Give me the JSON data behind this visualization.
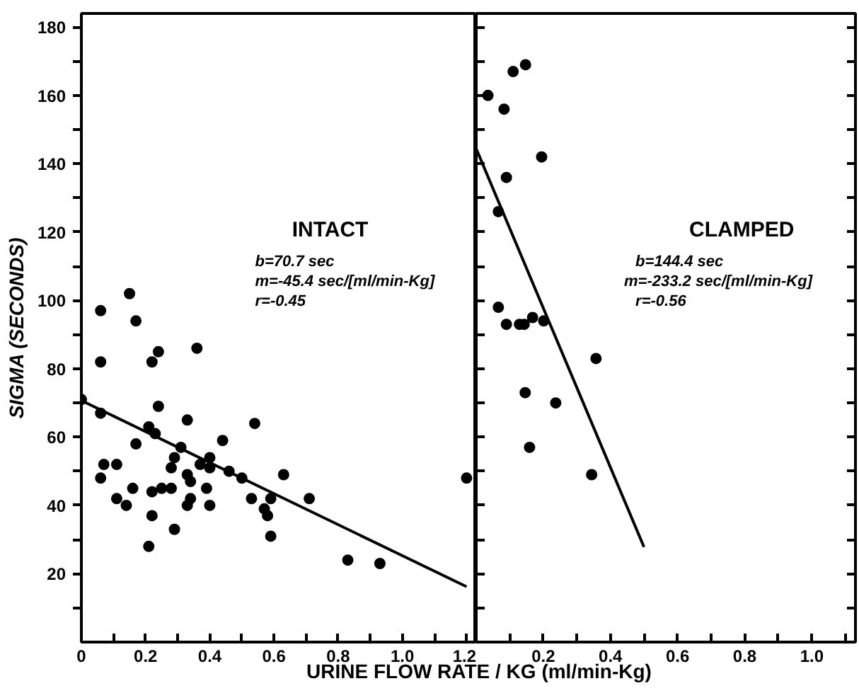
{
  "chart_data": [
    {
      "type": "scatter",
      "ylabel": "SIGMA (SECONDS)",
      "xlabel": "URINE FLOW RATE / KG (ml/min-Kg)",
      "annotations": [
        "INTACT",
        "b=70.7 sec",
        "m=-45.4 sec/[ml/min-Kg]",
        "r=-0.45"
      ],
      "xlim": [
        0,
        1.23
      ],
      "ylim": [
        0,
        184
      ],
      "grid": false,
      "xticks": [
        0,
        {
          "value": 0.1,
          "label": null
        },
        0.2,
        {
          "value": 0.3,
          "label": null
        },
        0.4,
        {
          "value": 0.5,
          "label": null
        },
        0.6,
        {
          "value": 0.7,
          "label": null
        },
        0.8,
        {
          "value": 0.9,
          "label": null
        },
        {
          "value": 1.0,
          "label": "1.0"
        },
        {
          "value": 1.1,
          "label": null
        },
        1.2
      ],
      "yticks": [
        {
          "value": 10,
          "label": null
        },
        20,
        {
          "value": 30,
          "label": null
        },
        40,
        {
          "value": 50,
          "label": null
        },
        60,
        {
          "value": 70,
          "label": null
        },
        80,
        {
          "value": 90,
          "label": null
        },
        100,
        {
          "value": 110,
          "label": null
        },
        120,
        {
          "value": 130,
          "label": null
        },
        140,
        {
          "value": 150,
          "label": null
        },
        160,
        {
          "value": 170,
          "label": null
        },
        180
      ],
      "series": [
        {
          "marker": "circle",
          "color": "#000000",
          "x": [
            0.06,
            0.15,
            0.17,
            0.24,
            0.36,
            0.06,
            0.22,
            0.0,
            0.06,
            0.21,
            0.23,
            0.24,
            0.33,
            0.17,
            0.31,
            0.54,
            0.44,
            0.29,
            0.07,
            0.11,
            0.06,
            0.28,
            0.33,
            0.34,
            0.37,
            0.4,
            0.4,
            0.46,
            0.5,
            0.63,
            0.16,
            0.22,
            0.25,
            0.28,
            0.11,
            0.14,
            0.34,
            0.33,
            0.39,
            0.4,
            0.53,
            0.57,
            0.59,
            0.58,
            0.59,
            0.71,
            0.22,
            0.29,
            0.21,
            0.83,
            0.93,
            1.2
          ],
          "values": [
            97,
            102,
            94,
            85,
            86,
            82,
            82,
            71,
            67,
            63,
            61,
            69,
            65,
            58,
            57,
            64,
            59,
            54,
            52,
            52,
            48,
            51,
            49,
            47,
            52,
            54,
            51,
            50,
            48,
            49,
            45,
            44,
            45,
            45,
            42,
            40,
            42,
            40,
            45,
            40,
            42,
            39,
            42,
            37,
            31,
            42,
            37,
            33,
            28,
            24,
            23,
            48
          ]
        },
        {
          "type": "line",
          "color": "#000000",
          "x": [
            0,
            1.2
          ],
          "values": [
            70.7,
            16.2
          ]
        }
      ]
    },
    {
      "type": "scatter",
      "tick_labels": "x",
      "annotations": [
        "CLAMPED",
        "b=144.4 sec",
        "m=-233.2 sec/[ml/min-Kg]",
        "r=-0.56"
      ],
      "xlim": [
        0,
        1.13
      ],
      "ylim": [
        0,
        184
      ],
      "xticks": [
        {
          "value": 0,
          "label": null
        },
        {
          "value": 0.1,
          "label": null
        },
        0.2,
        {
          "value": 0.3,
          "label": null
        },
        0.4,
        {
          "value": 0.5,
          "label": null
        },
        0.6,
        {
          "value": 0.7,
          "label": null
        },
        0.8,
        {
          "value": 0.9,
          "label": null
        },
        {
          "value": 1.0,
          "label": "1.0"
        },
        {
          "value": 1.1,
          "label": null
        }
      ],
      "yticks": [
        {
          "value": 10,
          "label": null
        },
        {
          "value": 20,
          "label": null
        },
        {
          "value": 30,
          "label": null
        },
        {
          "value": 40,
          "label": null
        },
        {
          "value": 50,
          "label": null
        },
        {
          "value": 60,
          "label": null
        },
        {
          "value": 70,
          "label": null
        },
        {
          "value": 80,
          "label": null
        },
        {
          "value": 90,
          "label": null
        },
        {
          "value": 100,
          "label": null
        },
        {
          "value": 110,
          "label": null
        },
        {
          "value": 120,
          "label": null
        },
        {
          "value": 130,
          "label": null
        },
        {
          "value": 140,
          "label": null
        },
        {
          "value": 150,
          "label": null
        },
        {
          "value": 160,
          "label": null
        },
        {
          "value": 170,
          "label": null
        },
        {
          "value": 180,
          "label": null
        }
      ],
      "series": [
        {
          "marker": "circle",
          "color": "#000000",
          "x": [
            0.147,
            0.11,
            0.035,
            0.083,
            0.195,
            0.09,
            0.066,
            0.066,
            0.09,
            0.129,
            0.143,
            0.168,
            0.201,
            0.357,
            0.146,
            0.237,
            0.159,
            0.344
          ],
          "values": [
            169,
            167,
            160,
            156,
            142,
            136,
            126,
            98,
            93,
            93,
            93,
            95,
            94,
            83,
            73,
            70,
            57,
            49
          ]
        },
        {
          "type": "line",
          "color": "#000000",
          "x": [
            0,
            0.5
          ],
          "values": [
            144.4,
            27.8
          ]
        }
      ]
    }
  ]
}
